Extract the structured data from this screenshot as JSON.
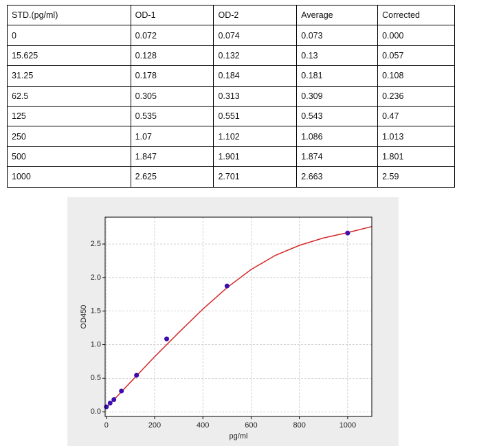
{
  "table": {
    "header": [
      "STD.(pg/ml)",
      "OD-1",
      "OD-2",
      "Average",
      "Corrected"
    ],
    "rows": [
      [
        "0",
        "0.072",
        "0.074",
        "0.073",
        "0.000"
      ],
      [
        "15.625",
        "0.128",
        "0.132",
        "0.13",
        "0.057"
      ],
      [
        "31.25",
        "0.178",
        "0.184",
        "0.181",
        "0.108"
      ],
      [
        "62.5",
        "0.305",
        "0.313",
        "0.309",
        "0.236"
      ],
      [
        "125",
        "0.535",
        "0.551",
        "0.543",
        "0.47"
      ],
      [
        "250",
        "1.07",
        "1.102",
        "1.086",
        "1.013"
      ],
      [
        "500",
        "1.847",
        "1.901",
        "1.874",
        "1.801"
      ],
      [
        "1000",
        "2.625",
        "2.701",
        "2.663",
        "2.59"
      ]
    ]
  },
  "chart_data": {
    "type": "scatter",
    "xlabel": "pg/ml",
    "ylabel": "OD450",
    "x": [
      0,
      15.625,
      31.25,
      62.5,
      125,
      250,
      500,
      1000
    ],
    "values": [
      0.073,
      0.13,
      0.181,
      0.309,
      0.543,
      1.086,
      1.874,
      2.663
    ],
    "color": "#3a0fb0",
    "curve": {
      "x": [
        0,
        50,
        100,
        150,
        200,
        300,
        400,
        500,
        600,
        700,
        800,
        900,
        1000,
        1100
      ],
      "values": [
        0.06,
        0.25,
        0.44,
        0.63,
        0.82,
        1.18,
        1.53,
        1.85,
        2.12,
        2.33,
        2.48,
        2.59,
        2.67,
        2.76
      ],
      "color": "#d62728"
    },
    "xlim": [
      -5,
      1100
    ],
    "ylim": [
      -0.07,
      2.9
    ],
    "xticks": [
      0,
      200,
      400,
      600,
      800,
      1000
    ],
    "yticks": [
      {
        "value": 0,
        "label": "0.0"
      },
      0.5,
      {
        "value": 1,
        "label": "1.0"
      },
      1.5,
      {
        "value": 2,
        "label": "2.0"
      },
      2.5
    ],
    "grid": true
  }
}
